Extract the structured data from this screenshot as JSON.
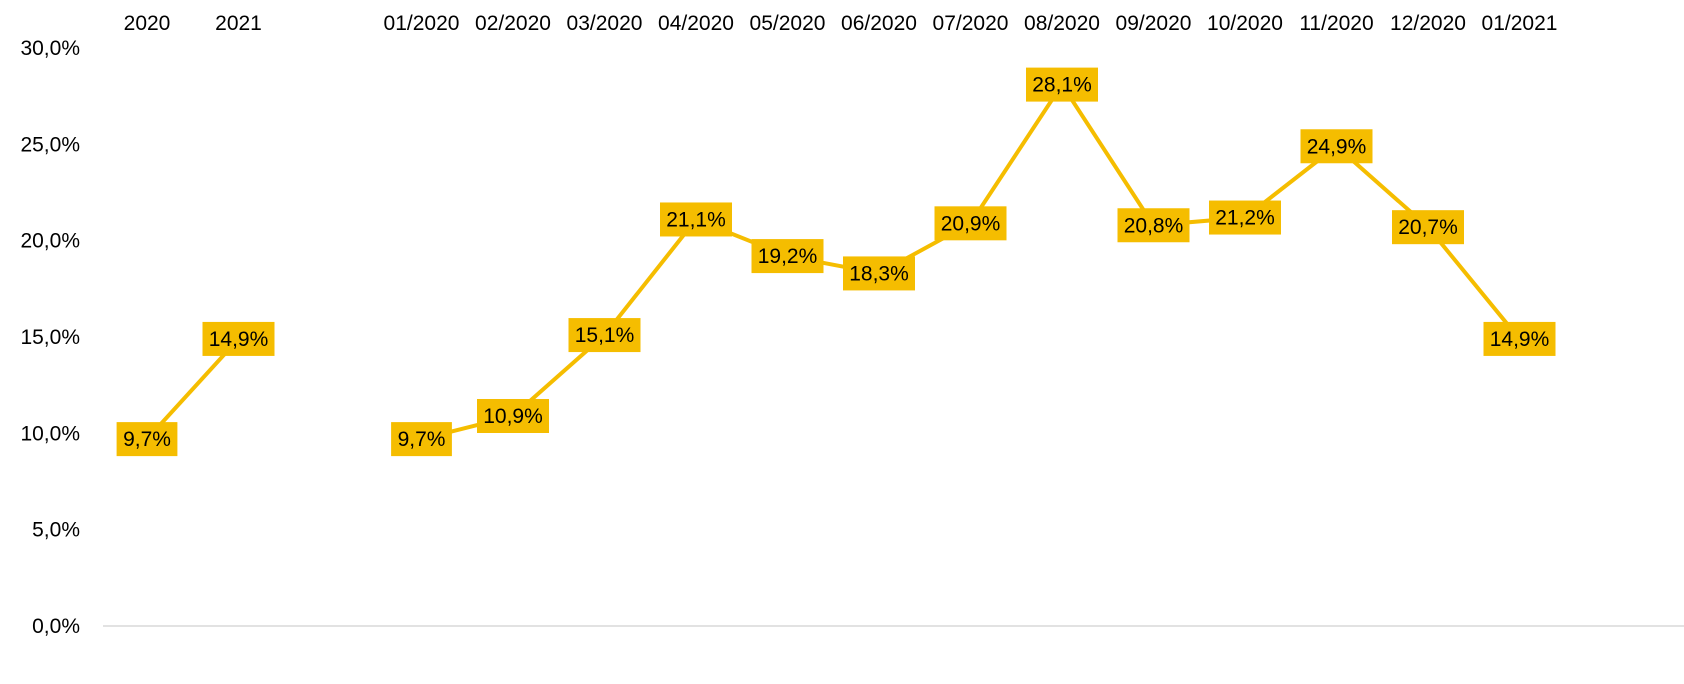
{
  "chart_data": {
    "type": "line",
    "ylim": [
      0,
      30
    ],
    "y_ticks": [
      "0,0%",
      "5,0%",
      "10,0%",
      "15,0%",
      "20,0%",
      "25,0%",
      "30,0%"
    ],
    "x_axis_position": "top",
    "grid": false,
    "legend": "none",
    "colors": {
      "line": "#F5BD00",
      "label_background": "#F5BD00",
      "axis": "#D9D9D9",
      "text": "#000000"
    },
    "categories": [
      "2020",
      "2021",
      "",
      "01/2020",
      "02/2020",
      "03/2020",
      "04/2020",
      "05/2020",
      "06/2020",
      "07/2020",
      "08/2020",
      "09/2020",
      "10/2020",
      "11/2020",
      "12/2020",
      "01/2021"
    ],
    "segments": [
      {
        "categories": [
          "2020",
          "2021"
        ],
        "values": [
          9.7,
          14.9
        ],
        "labels": [
          "9,7%",
          "14,9%"
        ]
      },
      {
        "categories": [
          "01/2020",
          "02/2020",
          "03/2020",
          "04/2020",
          "05/2020",
          "06/2020",
          "07/2020",
          "08/2020",
          "09/2020",
          "10/2020",
          "11/2020",
          "12/2020",
          "01/2021"
        ],
        "values": [
          9.7,
          10.9,
          15.1,
          21.1,
          19.2,
          18.3,
          20.9,
          28.1,
          20.8,
          21.2,
          24.9,
          20.7,
          14.9
        ],
        "labels": [
          "9,7%",
          "10,9%",
          "15,1%",
          "21,1%",
          "19,2%",
          "18,3%",
          "20,9%",
          "28,1%",
          "20,8%",
          "21,2%",
          "24,9%",
          "20,7%",
          "14,9%"
        ]
      }
    ]
  }
}
